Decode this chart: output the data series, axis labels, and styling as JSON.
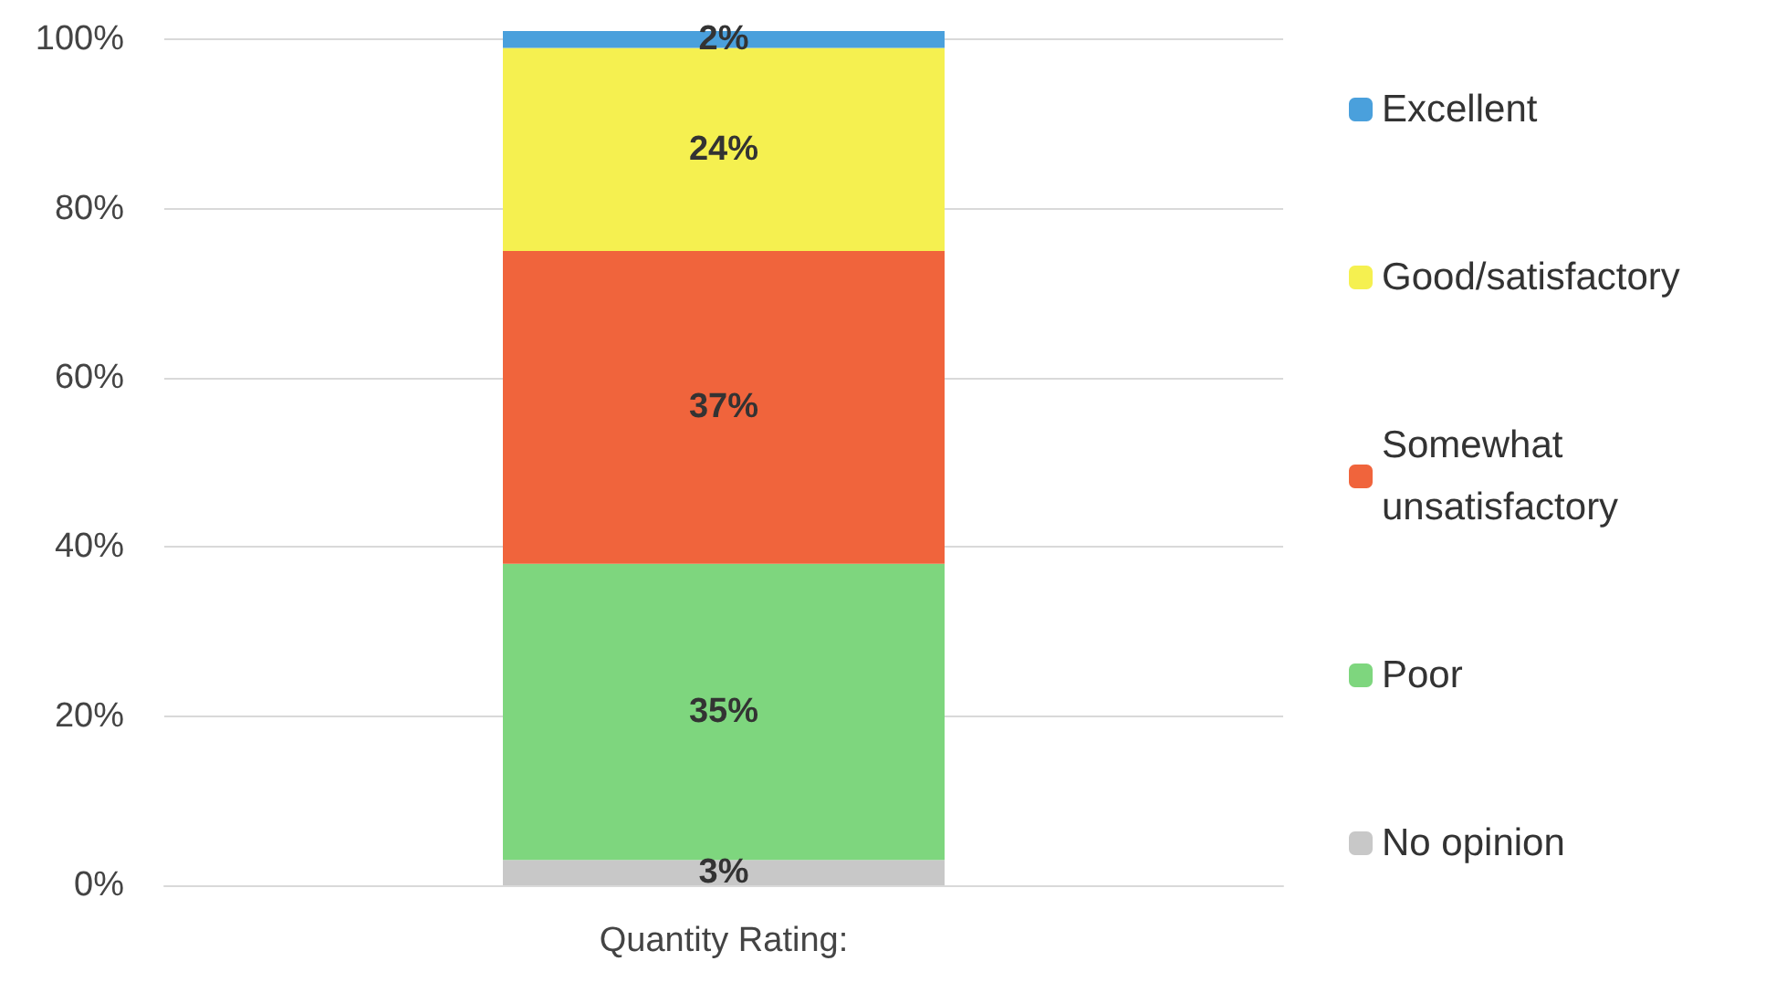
{
  "chart_data": {
    "type": "bar",
    "stacked": true,
    "categories": [
      null
    ],
    "xlabel": "Quantity Rating:",
    "series": [
      {
        "name": "No opinion",
        "color": "#c8c8c8",
        "values": [
          3
        ],
        "value_labels": [
          "3%"
        ]
      },
      {
        "name": "Poor",
        "color": "#7ed67e",
        "values": [
          35
        ],
        "value_labels": [
          "35%"
        ]
      },
      {
        "name": "Somewhat unsatisfactory",
        "color": "#f0643c",
        "values": [
          37
        ],
        "value_labels": [
          "37%"
        ]
      },
      {
        "name": "Good/satisfactory",
        "color": "#f5f050",
        "values": [
          24
        ],
        "value_labels": [
          "24%"
        ]
      },
      {
        "name": "Excellent",
        "color": "#4aa0dc",
        "values": [
          2
        ],
        "value_labels": [
          "2%"
        ]
      }
    ],
    "ylim": [
      0,
      101
    ],
    "yticks": [
      {
        "value": 0,
        "label": "0%"
      },
      {
        "value": 20,
        "label": "20%"
      },
      {
        "value": 40,
        "label": "40%"
      },
      {
        "value": 60,
        "label": "60%"
      },
      {
        "value": 80,
        "label": "80%"
      },
      {
        "value": 100,
        "label": "100%"
      }
    ],
    "grid": "y",
    "legend": "right"
  }
}
